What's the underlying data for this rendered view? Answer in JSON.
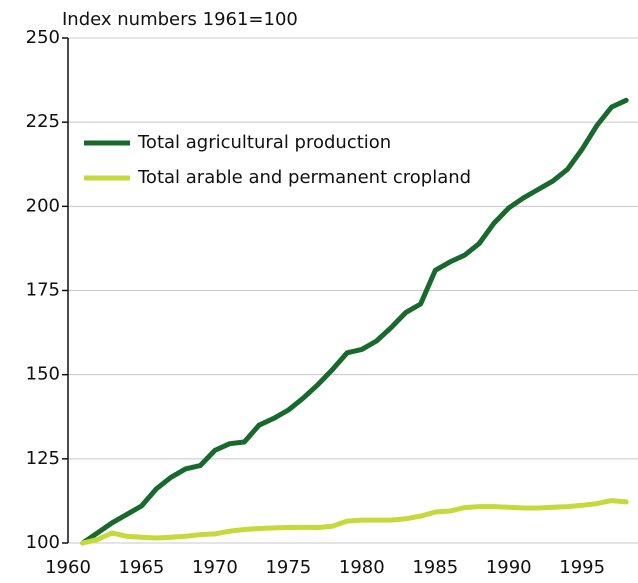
{
  "chart_data": {
    "type": "line",
    "y_label": "Index numbers 1961=100",
    "x": [
      1961,
      1962,
      1963,
      1964,
      1965,
      1966,
      1967,
      1968,
      1969,
      1970,
      1971,
      1972,
      1973,
      1974,
      1975,
      1976,
      1977,
      1978,
      1979,
      1980,
      1981,
      1982,
      1983,
      1984,
      1985,
      1986,
      1987,
      1988,
      1989,
      1990,
      1991,
      1992,
      1993,
      1994,
      1995,
      1996,
      1997,
      1998
    ],
    "series": [
      {
        "name": "Total agricultural production",
        "color": "#17692c",
        "values": [
          100,
          103,
          106,
          108.5,
          111,
          116,
          119.5,
          122,
          123,
          127.5,
          129.5,
          130,
          135,
          137,
          139.5,
          143,
          147,
          151.5,
          156.5,
          157.5,
          160,
          164,
          168.5,
          171,
          181,
          183.5,
          185.5,
          189,
          195,
          199.5,
          202.5,
          205,
          207.5,
          211,
          217,
          224,
          229.5,
          231.5
        ]
      },
      {
        "name": "Total arable and permanent cropland",
        "color": "#c5da3a",
        "values": [
          100,
          101,
          103,
          102,
          101.7,
          101.5,
          101.7,
          102,
          102.5,
          102.7,
          103.5,
          104,
          104.3,
          104.5,
          104.6,
          104.7,
          104.6,
          105,
          106.5,
          106.8,
          106.8,
          106.8,
          107.2,
          108,
          109.2,
          109.5,
          110.5,
          110.8,
          110.8,
          110.6,
          110.4,
          110.4,
          110.6,
          110.8,
          111.2,
          111.7,
          112.6,
          112.2
        ]
      }
    ],
    "xlim": [
      1960,
      1998.8
    ],
    "xticks": [
      1960,
      1965,
      1970,
      1975,
      1980,
      1985,
      1990,
      1995
    ],
    "ylim": [
      100,
      250
    ],
    "yticks": [
      100,
      125,
      150,
      175,
      200,
      225,
      250
    ],
    "grid": true,
    "legend": "upper left"
  }
}
